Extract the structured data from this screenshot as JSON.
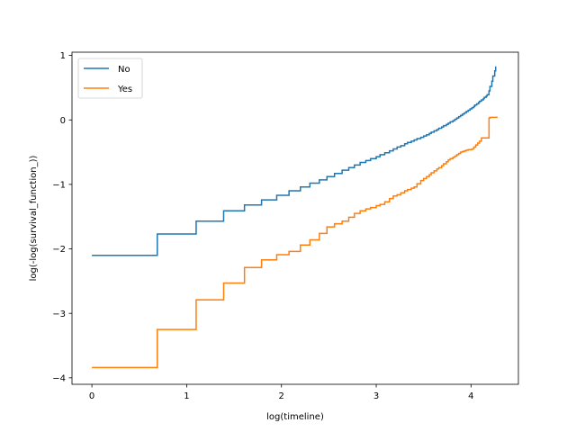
{
  "chart_data": {
    "type": "line",
    "step": true,
    "title": "",
    "xlabel": "log(timeline)",
    "ylabel": "log(-log(survival_function_))",
    "xlim": [
      -0.21,
      4.5
    ],
    "ylim": [
      -4.1,
      1.05
    ],
    "xticks": [
      0,
      1,
      2,
      3,
      4
    ],
    "xtick_labels": [
      "0",
      "1",
      "2",
      "3",
      "4"
    ],
    "yticks": [
      -4,
      -3,
      -2,
      -1,
      0,
      1
    ],
    "ytick_labels": [
      "−4",
      "−3",
      "−2",
      "−1",
      "0",
      "1"
    ],
    "grid": false,
    "legend_position": "top-left",
    "series": [
      {
        "name": "No",
        "color": "#1f77b4",
        "x": [
          0,
          0.69,
          1.1,
          1.39,
          1.61,
          1.79,
          1.95,
          2.08,
          2.2,
          2.3,
          2.4,
          2.48,
          2.56,
          2.64,
          2.71,
          2.77,
          2.83,
          2.89,
          2.94,
          3.0,
          3.04,
          3.09,
          3.14,
          3.18,
          3.22,
          3.26,
          3.3,
          3.33,
          3.37,
          3.4,
          3.43,
          3.47,
          3.5,
          3.53,
          3.56,
          3.58,
          3.61,
          3.64,
          3.66,
          3.69,
          3.71,
          3.74,
          3.76,
          3.78,
          3.81,
          3.83,
          3.85,
          3.87,
          3.89,
          3.91,
          3.93,
          3.95,
          3.97,
          3.99,
          4.01,
          4.03,
          4.04,
          4.06,
          4.08,
          4.09,
          4.11,
          4.13,
          4.14,
          4.16,
          4.17,
          4.19,
          4.2,
          4.22,
          4.23,
          4.25,
          4.26
        ],
        "y": [
          -2.1,
          -1.77,
          -1.57,
          -1.41,
          -1.32,
          -1.24,
          -1.17,
          -1.1,
          -1.04,
          -0.98,
          -0.93,
          -0.88,
          -0.83,
          -0.78,
          -0.74,
          -0.7,
          -0.66,
          -0.63,
          -0.6,
          -0.57,
          -0.54,
          -0.51,
          -0.48,
          -0.45,
          -0.42,
          -0.4,
          -0.37,
          -0.35,
          -0.33,
          -0.31,
          -0.29,
          -0.27,
          -0.25,
          -0.23,
          -0.21,
          -0.19,
          -0.17,
          -0.15,
          -0.13,
          -0.11,
          -0.09,
          -0.07,
          -0.05,
          -0.03,
          -0.01,
          0.01,
          0.03,
          0.05,
          0.07,
          0.09,
          0.11,
          0.13,
          0.15,
          0.17,
          0.19,
          0.21,
          0.23,
          0.25,
          0.27,
          0.29,
          0.31,
          0.33,
          0.35,
          0.37,
          0.39,
          0.45,
          0.52,
          0.6,
          0.68,
          0.76,
          0.83
        ]
      },
      {
        "name": "Yes",
        "color": "#ff7f0e",
        "x": [
          0,
          0.69,
          1.1,
          1.39,
          1.61,
          1.79,
          1.95,
          2.08,
          2.2,
          2.3,
          2.4,
          2.48,
          2.56,
          2.64,
          2.71,
          2.77,
          2.83,
          2.89,
          2.94,
          3.0,
          3.04,
          3.09,
          3.14,
          3.18,
          3.22,
          3.26,
          3.3,
          3.33,
          3.37,
          3.4,
          3.43,
          3.47,
          3.5,
          3.53,
          3.56,
          3.58,
          3.61,
          3.64,
          3.66,
          3.69,
          3.71,
          3.74,
          3.76,
          3.78,
          3.81,
          3.83,
          3.85,
          3.87,
          3.89,
          3.91,
          3.93,
          3.95,
          3.97,
          3.99,
          4.01,
          4.03,
          4.05,
          4.07,
          4.09,
          4.11,
          4.19,
          4.2,
          4.28
        ],
        "y": [
          -3.84,
          -3.25,
          -2.79,
          -2.53,
          -2.29,
          -2.17,
          -2.09,
          -2.04,
          -1.94,
          -1.86,
          -1.76,
          -1.66,
          -1.61,
          -1.57,
          -1.51,
          -1.45,
          -1.41,
          -1.38,
          -1.36,
          -1.33,
          -1.31,
          -1.27,
          -1.22,
          -1.18,
          -1.16,
          -1.13,
          -1.1,
          -1.08,
          -1.06,
          -1.04,
          -0.99,
          -0.94,
          -0.91,
          -0.88,
          -0.85,
          -0.82,
          -0.79,
          -0.76,
          -0.74,
          -0.71,
          -0.68,
          -0.65,
          -0.62,
          -0.6,
          -0.58,
          -0.56,
          -0.54,
          -0.52,
          -0.5,
          -0.49,
          -0.48,
          -0.47,
          -0.46,
          -0.46,
          -0.45,
          -0.42,
          -0.39,
          -0.36,
          -0.33,
          -0.28,
          0.03,
          0.04,
          0.04
        ]
      }
    ]
  }
}
